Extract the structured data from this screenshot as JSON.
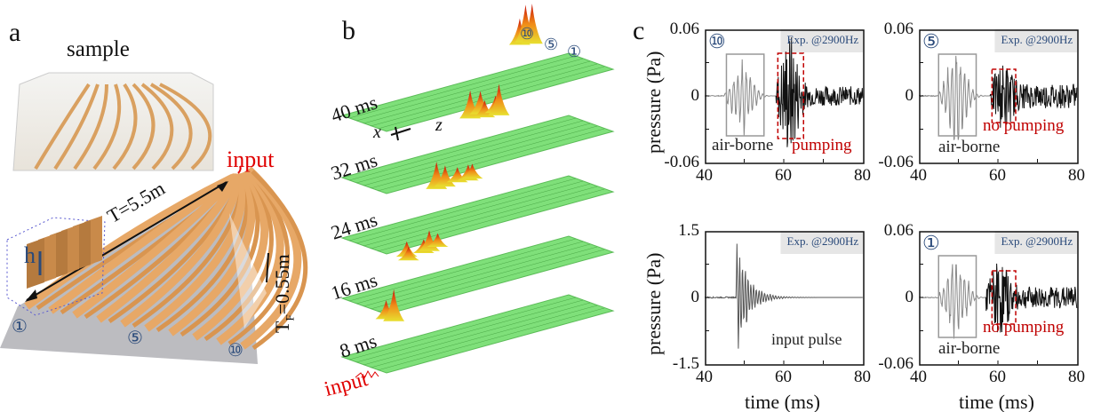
{
  "panels": {
    "a": {
      "label": "a",
      "sample_label": "sample",
      "input_label": "input",
      "length_label": "T=5.5m",
      "height_label": "h",
      "tf_label": "T",
      "tf_sub": "F",
      "tf_value": "=0.55m",
      "markers": [
        "①",
        "⑤",
        "⑩"
      ],
      "colors": {
        "bars": "#e7a867",
        "floor": "#b8b8bc",
        "input": "#e00000",
        "marker": "#2a4a7a"
      }
    },
    "b": {
      "label": "b",
      "time_labels": [
        "40 ms",
        "32 ms",
        "24 ms",
        "16 ms",
        "8 ms"
      ],
      "axis_x": "x",
      "axis_z": "z",
      "input_label": "input",
      "markers": [
        "⑩",
        "⑤",
        "①"
      ],
      "colors": {
        "slab": "#7fe07a",
        "peak": "#d81c10",
        "mid": "#f0d020"
      }
    },
    "c": {
      "label": "c"
    }
  },
  "chart_data": [
    {
      "type": "line",
      "marker": "⑩",
      "badge": "Exp. @2900Hz",
      "ylabel": "pressure (Pa)",
      "xlabel": "",
      "xlim": [
        40,
        80
      ],
      "ylim": [
        -0.06,
        0.06
      ],
      "xticks": [
        "40",
        "60",
        "80"
      ],
      "yticks": [
        "0.06",
        "0",
        "-0.06"
      ],
      "annotations": [
        {
          "text": "air-borne",
          "color": "#222222",
          "box": "solid",
          "range": [
            45.5,
            55
          ]
        },
        {
          "text": "pumping",
          "color": "#c00000",
          "box": "dashed",
          "range": [
            58.5,
            65
          ]
        }
      ],
      "wave": {
        "onset": 45,
        "airborne_peak": 0.035,
        "second_onset": 58,
        "second_peak": 0.05
      }
    },
    {
      "type": "line",
      "marker": "⑤",
      "badge": "Exp. @2900Hz",
      "ylabel": "",
      "xlabel": "",
      "xlim": [
        40,
        80
      ],
      "ylim": [
        -0.06,
        0.06
      ],
      "xticks": [
        "40",
        "60",
        "80"
      ],
      "yticks": [
        "0.06",
        "0",
        "-0.06"
      ],
      "annotations": [
        {
          "text": "air-borne",
          "color": "#222222",
          "box": "solid",
          "range": [
            45,
            54.5
          ]
        },
        {
          "text": "no pumping",
          "color": "#c00000",
          "box": "dashed",
          "range": [
            58.5,
            64.5
          ]
        }
      ],
      "wave": {
        "onset": 45,
        "airborne_peak": 0.045,
        "second_onset": 58,
        "second_peak": 0.02
      }
    },
    {
      "type": "line",
      "marker": "",
      "badge": "Exp. @2900Hz",
      "ylabel": "pressure (Pa)",
      "xlabel": "time (ms)",
      "xlim": [
        40,
        80
      ],
      "ylim": [
        -1.5,
        1.5
      ],
      "xticks": [
        "40",
        "60",
        "80"
      ],
      "yticks": [
        "1.5",
        "0",
        "-1.5"
      ],
      "annotations": [
        {
          "text": "input pulse",
          "color": "#222222",
          "box": "none"
        }
      ],
      "wave": {
        "onset": 48,
        "airborne_peak": 1.45,
        "second_onset": 0,
        "second_peak": 0
      }
    },
    {
      "type": "line",
      "marker": "①",
      "badge": "Exp. @2900Hz",
      "ylabel": "",
      "xlabel": "time (ms)",
      "xlim": [
        40,
        80
      ],
      "ylim": [
        -0.06,
        0.06
      ],
      "xticks": [
        "40",
        "60",
        "80"
      ],
      "yticks": [
        "0.06",
        "0",
        "-0.06"
      ],
      "annotations": [
        {
          "text": "air-borne",
          "color": "#222222",
          "box": "solid",
          "range": [
            45,
            54.5
          ]
        },
        {
          "text": "no pumping",
          "color": "#c00000",
          "box": "dashed",
          "range": [
            58.5,
            64.5
          ]
        }
      ],
      "wave": {
        "onset": 45,
        "airborne_peak": 0.04,
        "second_onset": 57,
        "second_peak": 0.025
      }
    }
  ]
}
